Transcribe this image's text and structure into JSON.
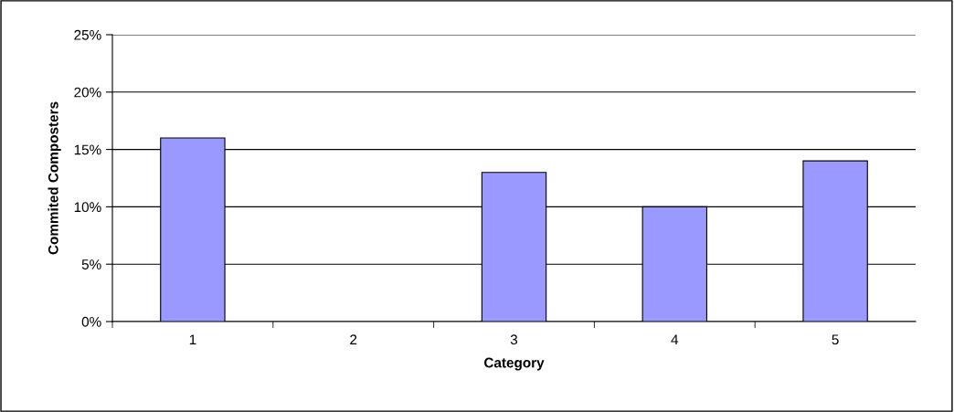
{
  "chart_data": {
    "type": "bar",
    "xlabel": "Category",
    "ylabel": "Commited Composters",
    "categories": [
      "1",
      "2",
      "3",
      "4",
      "5"
    ],
    "series": [
      {
        "color": "#9999ff",
        "values": [
          16,
          0,
          13,
          10,
          14
        ]
      }
    ],
    "ylim": [
      0,
      25
    ],
    "yticks": [
      {
        "value": 0,
        "label": "0%"
      },
      {
        "value": 5,
        "label": "5%"
      },
      {
        "value": 10,
        "label": "10%"
      },
      {
        "value": 15,
        "label": "15%"
      },
      {
        "value": 20,
        "label": "20%"
      },
      {
        "value": 25,
        "label": "25%"
      }
    ],
    "grid": "y",
    "legend": false
  }
}
